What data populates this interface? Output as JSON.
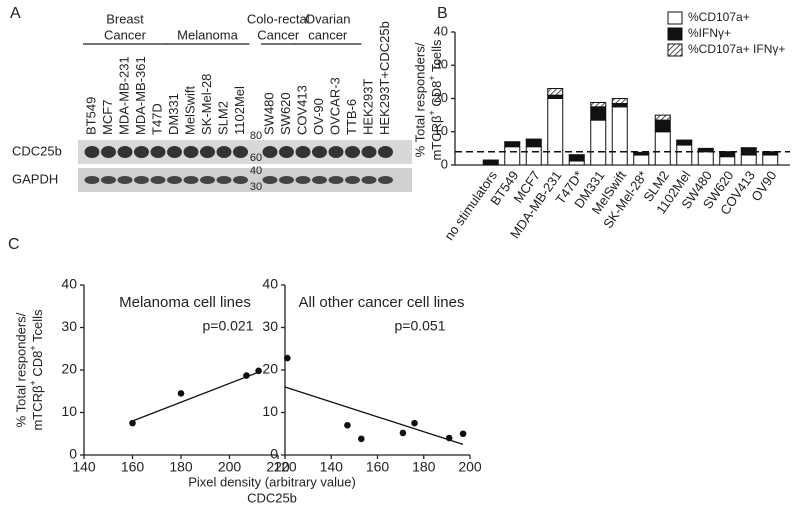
{
  "panel_labels": [
    "A",
    "B",
    "C"
  ],
  "blot": {
    "groups": [
      {
        "lines": [
          "Breast",
          "Cancer"
        ],
        "lanes": [
          "BT549",
          "MCF7",
          "MDA-MB-231",
          "MDA-MB-361",
          "T47D"
        ]
      },
      {
        "lines": [
          "Melanoma"
        ],
        "lanes": [
          "DM331",
          "MelSwift",
          "SK-Mel-28",
          "SLM2",
          "1102Mel"
        ]
      },
      {
        "lines": [
          "Colo-rectal",
          "Cancer"
        ],
        "lanes": [
          "SW480",
          "SW620"
        ]
      },
      {
        "lines": [
          "Ovarian",
          "cancer"
        ],
        "lanes": [
          "COV413",
          "OV-90",
          "OVCAR-3",
          "TTB-6"
        ]
      }
    ],
    "other_lanes": [
      "HEK293T",
      "HEK293T+CDC25b"
    ],
    "rows": [
      "CDC25b",
      "GAPDH"
    ],
    "markers": [
      80,
      60,
      40,
      30
    ]
  },
  "panel_c": {
    "xlabel": "Pixel density (arbitrary value)",
    "xlabel2": "CDC25b"
  },
  "chart_data": [
    {
      "type": "bar",
      "stacked": true,
      "ylabel": [
        "% Total responders/",
        [
          "mTCRβ",
          "+",
          " CD8",
          "+",
          " Tcells"
        ]
      ],
      "categories": [
        "no stimulators",
        "BT549",
        "MCF7",
        "MDA-MB-231",
        "T47D*",
        "DM331",
        "MelSwift",
        "SK-Mel-28*",
        "SLM2",
        "1102Mel",
        "SW480",
        "SW620",
        "COV413",
        "OV90"
      ],
      "series": [
        {
          "name": "%CD107a+",
          "color": "#ffffff",
          "values": [
            0.3,
            5.5,
            5.5,
            20,
            1.2,
            13.5,
            17.5,
            3,
            10,
            6,
            4,
            2.5,
            3,
            3
          ]
        },
        {
          "name": "%IFNγ+",
          "color": "#111111",
          "values": [
            1.2,
            1.2,
            2,
            1,
            1.6,
            4,
            1,
            0.6,
            3.5,
            1.2,
            0.8,
            1.3,
            2,
            0.8
          ]
        },
        {
          "name": "%CD107a+ IFNγ+",
          "color": "#ffffff",
          "pattern": "hatch",
          "values": [
            0,
            0.3,
            0.3,
            2,
            0.3,
            1.3,
            1.5,
            0.2,
            1.5,
            0.3,
            0.2,
            0.2,
            0.2,
            0.2
          ]
        }
      ],
      "dashed_line": 4,
      "ylim": [
        0,
        40
      ],
      "yticks": [
        0,
        10,
        20,
        30,
        40
      ],
      "legend": "top-right"
    },
    {
      "type": "scatter",
      "title": "Melanoma cell lines",
      "annotation": "p=0.021",
      "ylabel": [
        "% Total responders/",
        [
          "mTCRβ",
          "+",
          " CD8",
          "+",
          " Tcells"
        ]
      ],
      "x": [
        160,
        180,
        207,
        212
      ],
      "values": [
        7.5,
        14.5,
        18.7,
        19.8
      ],
      "fit_line": {
        "x": [
          160,
          212
        ],
        "y": [
          8,
          19.5
        ]
      },
      "xlim": [
        140,
        220
      ],
      "xticks": [
        140,
        160,
        180,
        200,
        220
      ],
      "ylim": [
        0,
        40
      ],
      "yticks": [
        0,
        10,
        20,
        30,
        40
      ]
    },
    {
      "type": "scatter",
      "title": "All other cancer cell lines",
      "annotation": "p=0.051",
      "x": [
        121,
        147,
        153,
        171,
        176,
        191,
        197
      ],
      "values": [
        22.8,
        7,
        3.8,
        5.2,
        7.5,
        4,
        5
      ],
      "fit_line": {
        "x": [
          120,
          197
        ],
        "y": [
          16,
          2.5
        ]
      },
      "xlim": [
        120,
        200
      ],
      "xticks": [
        120,
        140,
        160,
        180,
        200
      ],
      "ylim": [
        0,
        40
      ],
      "yticks": [
        0,
        10,
        20,
        30,
        40
      ]
    }
  ]
}
